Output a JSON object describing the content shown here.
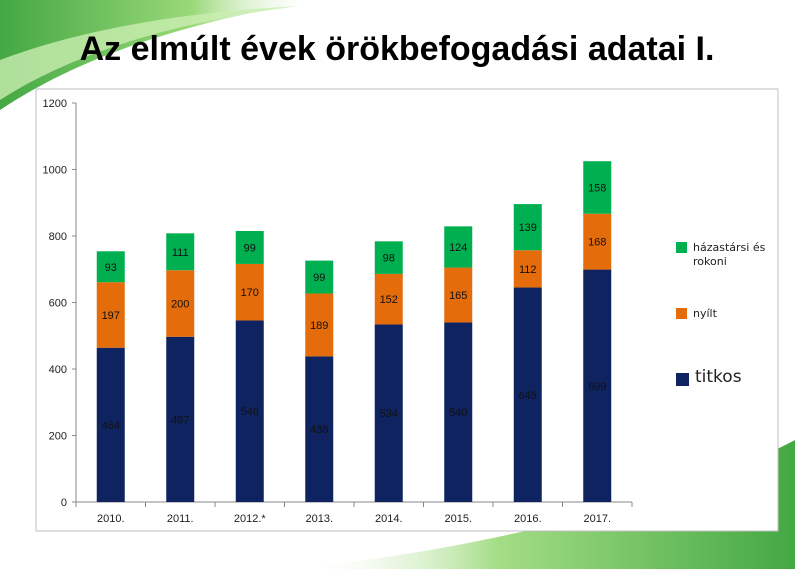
{
  "chart_data": {
    "type": "stacked-bar",
    "title": "Az elmúlt évek örökbefogadási adatai I.",
    "categories": [
      "2010.",
      "2011.",
      "2012.*",
      "2013.",
      "2014.",
      "2015.",
      "2016.",
      "2017."
    ],
    "series": [
      {
        "name": "titkos",
        "color": "#0f2361",
        "values": [
          464,
          497,
          546,
          438,
          534,
          540,
          645,
          699
        ]
      },
      {
        "name": "nyílt",
        "color": "#e46c0a",
        "values": [
          197,
          200,
          170,
          189,
          152,
          165,
          112,
          168
        ]
      },
      {
        "name": "házastársi és rokoni",
        "color": "#00b050",
        "values": [
          93,
          111,
          99,
          99,
          98,
          124,
          139,
          158
        ]
      }
    ],
    "ylim": [
      0,
      1200
    ],
    "yticks": [
      0,
      200,
      400,
      600,
      800,
      1000,
      1200
    ],
    "grid": false,
    "legend": "right"
  }
}
